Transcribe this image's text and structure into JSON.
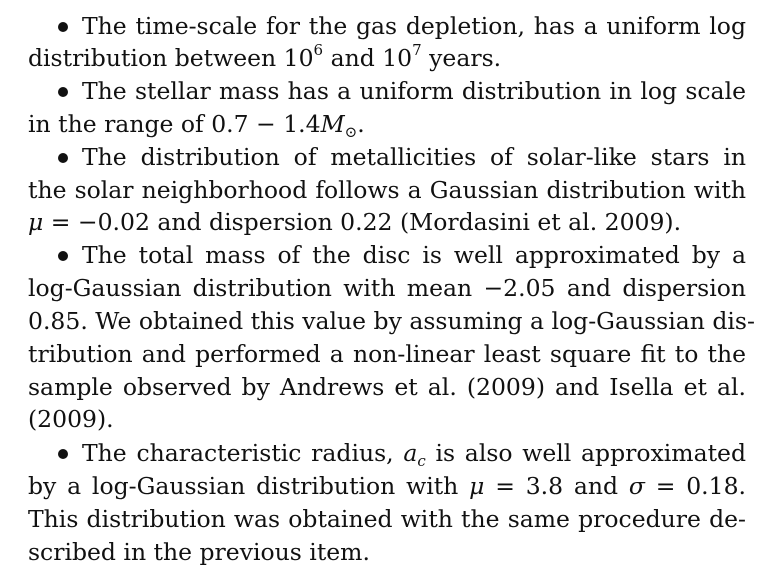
{
  "items": [
    {
      "lines": [
        "The time-scale for the gas depletion, has a uniform log",
        "distribution between 10",
        "6",
        " and 10",
        "7",
        " years."
      ]
    },
    {
      "lines": [
        "The stellar mass has a uniform distribution in log scale",
        "in the range of 0.7 − 1.4",
        "M",
        "⊙",
        "."
      ]
    },
    {
      "lines": [
        "The distribution of metallicities of solar-like stars in",
        "the solar neighborhood follows a Gaussian distribution with",
        "μ",
        " = −0.02 and dispersion 0.22 (Mordasini et al. 2009)."
      ]
    },
    {
      "lines": [
        "The total mass of the disc is well approximated by a",
        "log-Gaussian distribution with mean −2.05 and dispersion",
        "0.85. We obtained this value by assuming a log-Gaussian dis-",
        "tribution and performed a non-linear least square fit to the",
        "sample observed by Andrews et al. (2009) and Isella et al.",
        "(2009)."
      ]
    },
    {
      "lines": [
        "The characteristic radius, ",
        "a",
        "c",
        " is also well approximated",
        "by a log-Gaussian distribution with ",
        "μ",
        " = 3.8 and ",
        "σ",
        " = 0.18.",
        "This distribution was obtained with the same procedure de-",
        "scribed in the previous item."
      ]
    }
  ]
}
